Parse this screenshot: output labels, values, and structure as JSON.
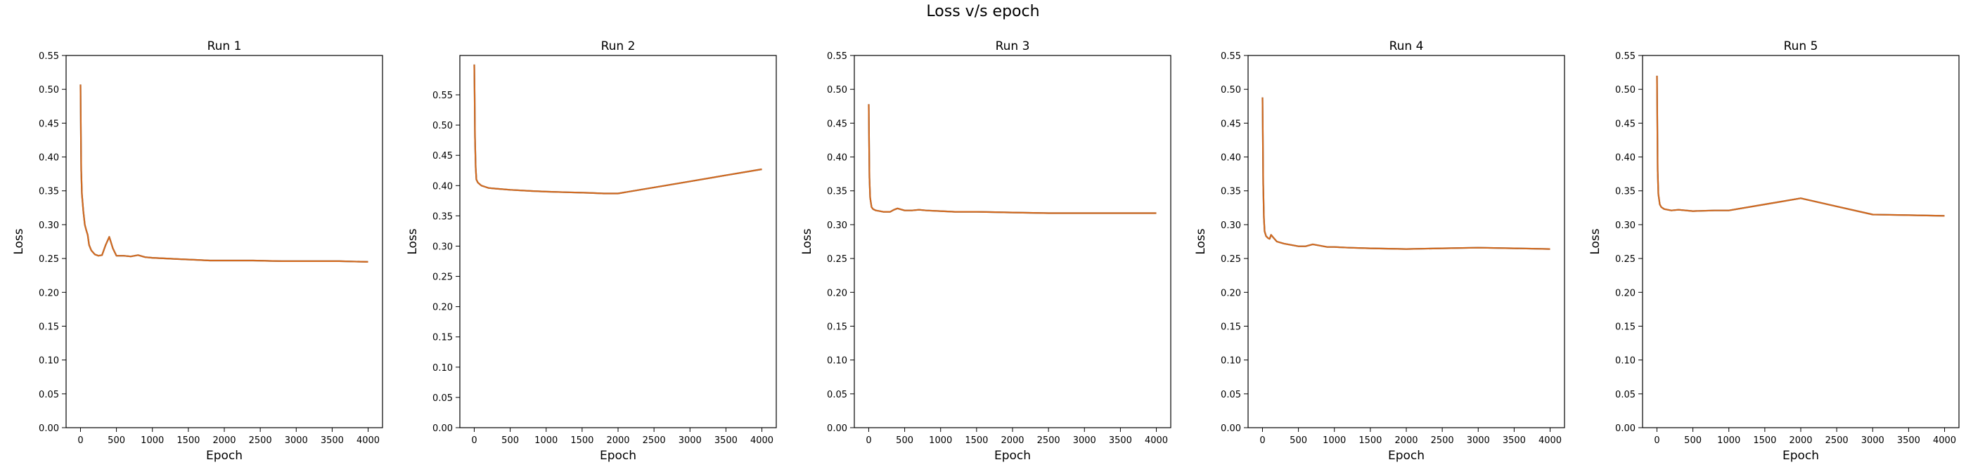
{
  "figure": {
    "title": "Loss v/s epoch",
    "line_color": "#d2691e",
    "underline_color": "#1f77b4"
  },
  "chart_data": [
    {
      "type": "line",
      "title": "Run 1",
      "xlabel": "Epoch",
      "ylabel": "Loss",
      "xlim": [
        -200,
        4200
      ],
      "ylim": [
        0,
        0.55
      ],
      "xticks": [
        0,
        500,
        1000,
        1500,
        2000,
        2500,
        3000,
        3500,
        4000
      ],
      "yticks": [
        0.0,
        0.05,
        0.1,
        0.15,
        0.2,
        0.25,
        0.3,
        0.35,
        0.4,
        0.45,
        0.5,
        0.55
      ],
      "ytick_labels": [
        "0.00",
        "0.05",
        "0.10",
        "0.15",
        "0.20",
        "0.25",
        "0.30",
        "0.35",
        "0.40",
        "0.45",
        "0.50",
        "0.55"
      ],
      "grid": false,
      "series": [
        {
          "x": [
            0,
            5,
            10,
            20,
            40,
            60,
            80,
            100,
            120,
            150,
            200,
            250,
            300,
            350,
            400,
            450,
            500,
            600,
            700,
            800,
            900,
            1000,
            1200,
            1400,
            1600,
            1800,
            2000,
            2400,
            2800,
            3200,
            3600,
            4000
          ],
          "y": [
            0.507,
            0.44,
            0.38,
            0.345,
            0.32,
            0.3,
            0.292,
            0.285,
            0.27,
            0.262,
            0.256,
            0.254,
            0.255,
            0.27,
            0.282,
            0.265,
            0.254,
            0.254,
            0.253,
            0.255,
            0.252,
            0.251,
            0.25,
            0.249,
            0.248,
            0.247,
            0.247,
            0.247,
            0.246,
            0.246,
            0.246,
            0.245
          ]
        }
      ]
    },
    {
      "type": "line",
      "title": "Run 2",
      "xlabel": "Epoch",
      "ylabel": "Loss",
      "xlim": [
        -200,
        4200
      ],
      "ylim": [
        0,
        0.615
      ],
      "xticks": [
        0,
        500,
        1000,
        1500,
        2000,
        2500,
        3000,
        3500,
        4000
      ],
      "yticks": [
        0.0,
        0.05,
        0.1,
        0.15,
        0.2,
        0.25,
        0.3,
        0.35,
        0.4,
        0.45,
        0.5,
        0.55
      ],
      "ytick_labels": [
        "0.00",
        "0.05",
        "0.10",
        "0.15",
        "0.20",
        "0.25",
        "0.30",
        "0.35",
        "0.40",
        "0.45",
        "0.50",
        "0.55"
      ],
      "grid": false,
      "series": [
        {
          "x": [
            0,
            5,
            10,
            20,
            30,
            50,
            80,
            100,
            150,
            200,
            300,
            500,
            800,
            1000,
            1300,
            1600,
            1800,
            2000,
            2500,
            3000,
            3500,
            4000
          ],
          "y": [
            0.6,
            0.55,
            0.48,
            0.43,
            0.41,
            0.405,
            0.402,
            0.4,
            0.398,
            0.396,
            0.395,
            0.393,
            0.391,
            0.39,
            0.389,
            0.388,
            0.387,
            0.387,
            0.397,
            0.407,
            0.417,
            0.427
          ]
        }
      ]
    },
    {
      "type": "line",
      "title": "Run 3",
      "xlabel": "Epoch",
      "ylabel": "Loss",
      "xlim": [
        -200,
        4200
      ],
      "ylim": [
        0,
        0.55
      ],
      "xticks": [
        0,
        500,
        1000,
        1500,
        2000,
        2500,
        3000,
        3500,
        4000
      ],
      "yticks": [
        0.0,
        0.05,
        0.1,
        0.15,
        0.2,
        0.25,
        0.3,
        0.35,
        0.4,
        0.45,
        0.5,
        0.55
      ],
      "ytick_labels": [
        "0.00",
        "0.05",
        "0.10",
        "0.15",
        "0.20",
        "0.25",
        "0.30",
        "0.35",
        "0.40",
        "0.45",
        "0.50",
        "0.55"
      ],
      "grid": false,
      "series": [
        {
          "x": [
            0,
            5,
            10,
            20,
            40,
            60,
            100,
            150,
            200,
            300,
            350,
            400,
            500,
            600,
            700,
            800,
            1000,
            1200,
            1500,
            2000,
            2500,
            3000,
            3500,
            4000
          ],
          "y": [
            0.478,
            0.42,
            0.37,
            0.34,
            0.326,
            0.323,
            0.321,
            0.32,
            0.319,
            0.319,
            0.322,
            0.324,
            0.321,
            0.321,
            0.322,
            0.321,
            0.32,
            0.319,
            0.319,
            0.318,
            0.317,
            0.317,
            0.317,
            0.317
          ]
        }
      ]
    },
    {
      "type": "line",
      "title": "Run 4",
      "xlabel": "Epoch",
      "ylabel": "Loss",
      "xlim": [
        -200,
        4200
      ],
      "ylim": [
        0,
        0.55
      ],
      "xticks": [
        0,
        500,
        1000,
        1500,
        2000,
        2500,
        3000,
        3500,
        4000
      ],
      "yticks": [
        0.0,
        0.05,
        0.1,
        0.15,
        0.2,
        0.25,
        0.3,
        0.35,
        0.4,
        0.45,
        0.5,
        0.55
      ],
      "ytick_labels": [
        "0.00",
        "0.05",
        "0.10",
        "0.15",
        "0.20",
        "0.25",
        "0.30",
        "0.35",
        "0.40",
        "0.45",
        "0.50",
        "0.55"
      ],
      "grid": false,
      "series": [
        {
          "x": [
            0,
            5,
            10,
            20,
            30,
            50,
            80,
            100,
            120,
            150,
            200,
            300,
            400,
            500,
            600,
            700,
            800,
            900,
            1000,
            1200,
            1500,
            2000,
            2500,
            3000,
            3500,
            4000
          ],
          "y": [
            0.488,
            0.43,
            0.36,
            0.31,
            0.29,
            0.283,
            0.28,
            0.279,
            0.285,
            0.281,
            0.275,
            0.272,
            0.27,
            0.268,
            0.268,
            0.271,
            0.269,
            0.267,
            0.267,
            0.266,
            0.265,
            0.264,
            0.265,
            0.266,
            0.265,
            0.264
          ]
        }
      ]
    },
    {
      "type": "line",
      "title": "Run 5",
      "xlabel": "Epoch",
      "ylabel": "Loss",
      "xlim": [
        -200,
        4200
      ],
      "ylim": [
        0,
        0.55
      ],
      "xticks": [
        0,
        500,
        1000,
        1500,
        2000,
        2500,
        3000,
        3500,
        4000
      ],
      "yticks": [
        0.0,
        0.05,
        0.1,
        0.15,
        0.2,
        0.25,
        0.3,
        0.35,
        0.4,
        0.45,
        0.5,
        0.55
      ],
      "ytick_labels": [
        "0.00",
        "0.05",
        "0.10",
        "0.15",
        "0.20",
        "0.25",
        "0.30",
        "0.35",
        "0.40",
        "0.45",
        "0.50",
        "0.55"
      ],
      "grid": false,
      "series": [
        {
          "x": [
            0,
            5,
            10,
            20,
            40,
            60,
            100,
            200,
            300,
            500,
            800,
            1000,
            1500,
            2000,
            2500,
            3000,
            3500,
            4000
          ],
          "y": [
            0.52,
            0.45,
            0.38,
            0.345,
            0.33,
            0.326,
            0.323,
            0.321,
            0.322,
            0.32,
            0.321,
            0.321,
            0.33,
            0.339,
            0.327,
            0.315,
            0.314,
            0.313
          ]
        }
      ]
    }
  ]
}
